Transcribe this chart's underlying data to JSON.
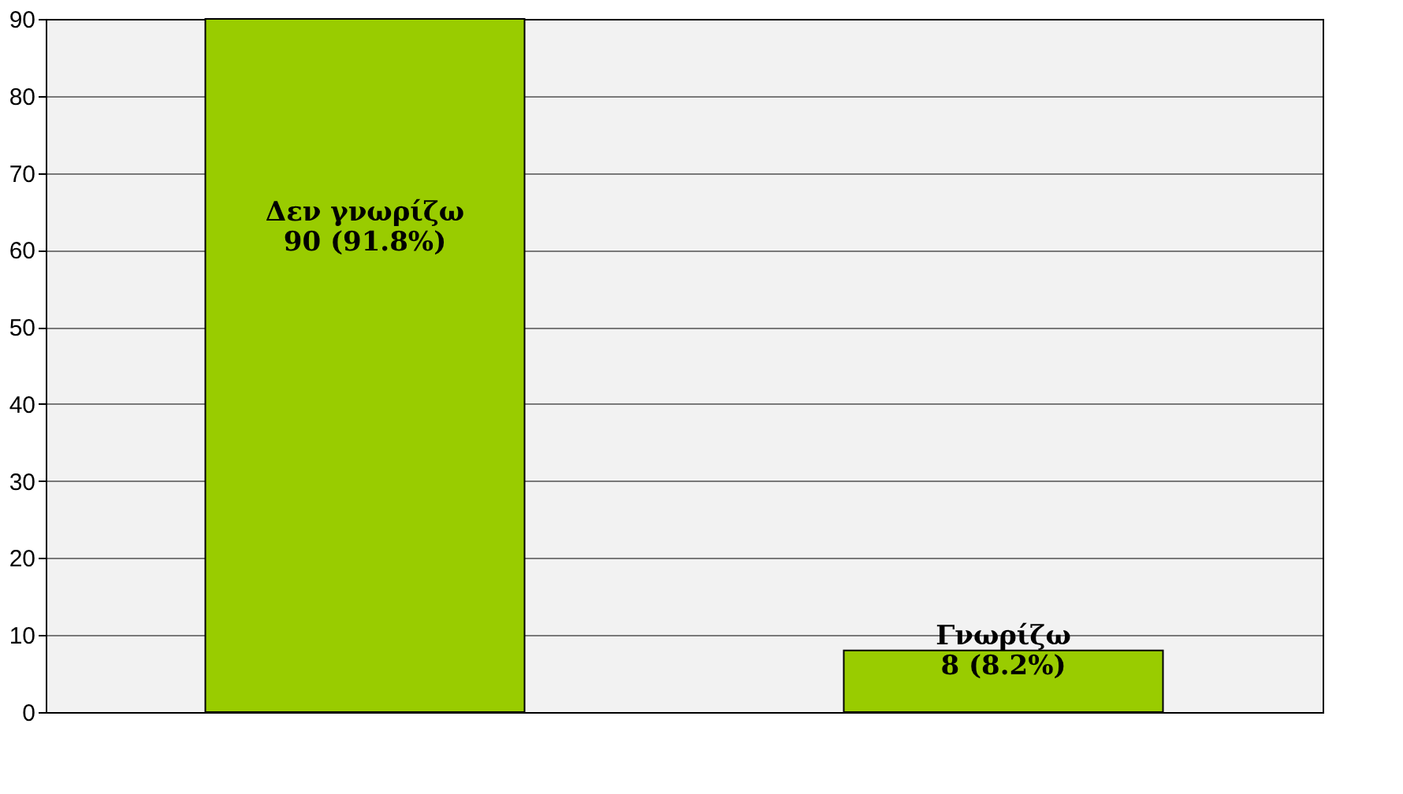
{
  "chart_data": {
    "type": "bar",
    "categories": [
      "Δεν γνωρίζω",
      "Γνωρίζω"
    ],
    "values": [
      90,
      8
    ],
    "value_labels": [
      "90 (91.8%)",
      "8 (8.2%)"
    ],
    "color": "#99cc00",
    "ylim": [
      0,
      90
    ],
    "yticks": [
      0,
      10,
      20,
      30,
      40,
      50,
      60,
      70,
      80,
      90
    ],
    "grid": "y",
    "tick_labels": "y"
  }
}
